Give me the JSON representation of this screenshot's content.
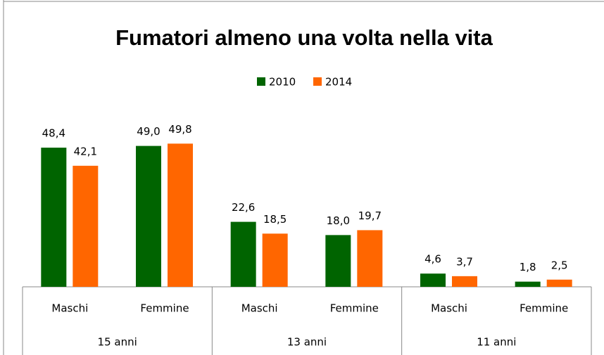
{
  "chart_data": {
    "type": "bar",
    "title": "Fumatori almeno una volta nella vita",
    "categories": [
      "Maschi",
      "Femmine",
      "Maschi",
      "Femmine",
      "Maschi",
      "Femmine"
    ],
    "groups": [
      "15 anni",
      "13 anni",
      "11 anni"
    ],
    "series": [
      {
        "name": "2010",
        "color": "#006400",
        "values": [
          48.4,
          49.0,
          22.6,
          18.0,
          4.6,
          1.8
        ],
        "value_labels": [
          "48,4",
          "49,0",
          "22,6",
          "18,0",
          "4,6",
          "1,8"
        ]
      },
      {
        "name": "2014",
        "color": "#ff6600",
        "values": [
          42.1,
          49.8,
          18.5,
          19.7,
          3.7,
          2.5
        ],
        "value_labels": [
          "42,1",
          "49,8",
          "18,5",
          "19,7",
          "3,7",
          "2,5"
        ]
      }
    ],
    "legend": "top"
  }
}
